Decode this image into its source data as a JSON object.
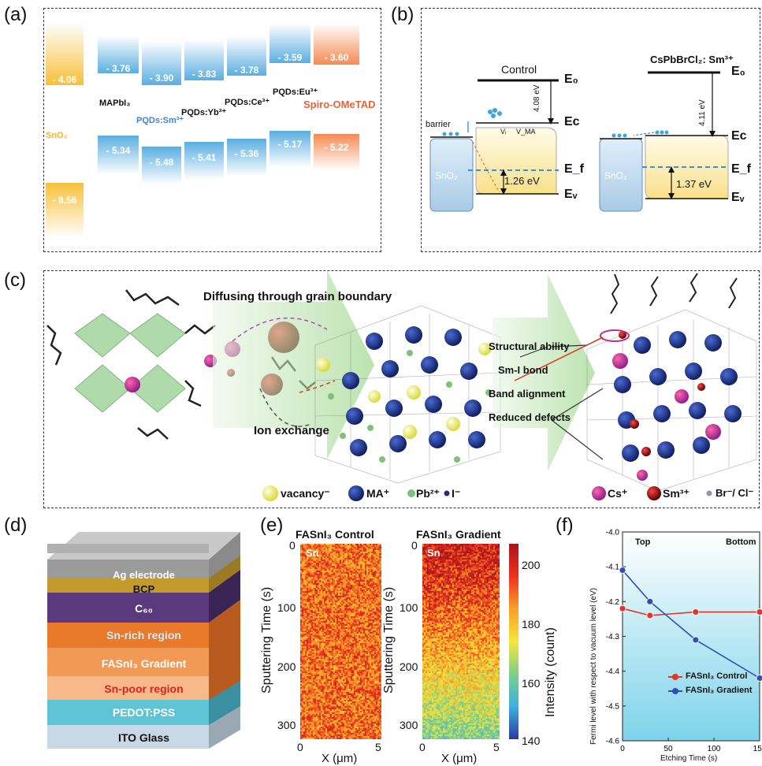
{
  "panels": {
    "a": "(a)",
    "b": "(b)",
    "c": "(c)",
    "d": "(d)",
    "e": "(e)",
    "f": "(f)"
  },
  "panel_a": {
    "top_levels": [
      "- 4.06",
      "- 3.76",
      "- 3.90",
      "- 3.83",
      "- 3.78",
      "- 3.59",
      "- 3.60"
    ],
    "bottom_levels": [
      "- 8.56",
      "- 5.34",
      "- 5.48",
      "- 5.41",
      "- 5.36",
      "- 5.17",
      "- 5.22"
    ],
    "materials": [
      "SnO₂",
      "MAPbI₃",
      "PQDs:Sm³⁺",
      "PQDs:Yb³⁺",
      "PQDs:Ce³⁺",
      "PQDs:Eu³⁺",
      "Spiro-OMeTAD"
    ],
    "colors": {
      "sno2": "#f7c03a",
      "blue": "#5aaee0",
      "orange": "#f58a52"
    }
  },
  "panel_b": {
    "control": "Control",
    "sample": "CsPbBrCl₂: Sm³⁺",
    "e0": "E₀",
    "ec": "Eᴄ",
    "ef": "E_f",
    "ev": "Eᵥ",
    "barrier": "barrier",
    "vi": "Vᵢ",
    "vma": "V_MA",
    "gap1": "4.08 eV",
    "band1": "1.26 eV",
    "gap2": "4.11 eV",
    "band2": "1.37 eV",
    "sno2": "SnO₂"
  },
  "panel_c": {
    "diffuse": "Diffusing through grain boundary",
    "ion_exchange": "Ion exchange",
    "structural": "Structural ability",
    "smi": "Sm-I bond",
    "band": "Band alignment",
    "defects": "Reduced defects",
    "legend": [
      "vacancy⁻",
      "MA⁺",
      "Pb²⁺",
      "I⁻",
      "Cs⁺",
      "Sm³⁺",
      "Br⁻/ Cl⁻"
    ]
  },
  "panel_d": {
    "layers": [
      "Ag electrode",
      "BCP",
      "C₆₀",
      "Sn-rich region",
      "FASnI₃ Gradient",
      "Sn-poor region",
      "PEDOT:PSS",
      "ITO Glass"
    ]
  },
  "panel_e": {
    "title_control": "FASnI₃ Control",
    "title_gradient": "FASnI₃ Gradient",
    "element": "Sn",
    "ylabel": "Sputtering Time (s)",
    "xlabel": "X (μm)",
    "cbar_label": "Intensity (count)",
    "yticks": [
      "0",
      "100",
      "200",
      "300"
    ],
    "xticks": [
      "0",
      "5"
    ],
    "cbar_ticks": [
      "200",
      "180",
      "160",
      "140"
    ]
  },
  "chart_data": {
    "type": "line",
    "xlabel": "Etching Time (s)",
    "ylabel": "Fermi level with respect to vacuum level (eV)",
    "annotations": [
      "Top",
      "Bottom"
    ],
    "xlim": [
      0,
      150
    ],
    "ylim": [
      -4.6,
      -4.0
    ],
    "xticks": [
      "0",
      "50",
      "100",
      "150"
    ],
    "yticks": [
      "-4.0",
      "-4.1",
      "-4.2",
      "-4.3",
      "-4.4",
      "-4.5",
      "-4.6"
    ],
    "x": [
      0,
      30,
      80,
      150
    ],
    "series": [
      {
        "name": "FASnI₃ Control",
        "values": [
          -4.22,
          -4.24,
          -4.23,
          -4.23
        ],
        "color": "#e8322c"
      },
      {
        "name": "FASnI₃ Gradient",
        "values": [
          -4.11,
          -4.2,
          -4.31,
          -4.42
        ],
        "color": "#2f4fb5"
      }
    ]
  }
}
